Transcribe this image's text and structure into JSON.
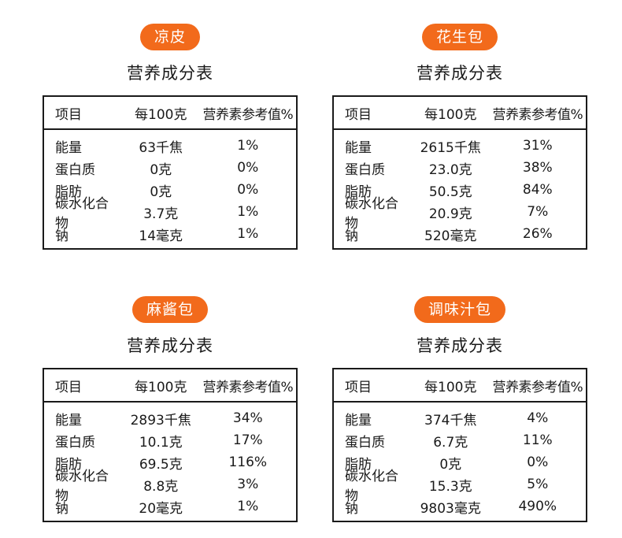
{
  "panels": [
    {
      "badge": "凉皮",
      "heading": "营养成分表",
      "header": {
        "item": "项目",
        "per100": "每100克",
        "nrv": "营养素参考值%"
      },
      "rows": [
        {
          "name": "能量",
          "value": "63千焦",
          "nrv": "1%"
        },
        {
          "name": "蛋白质",
          "value": "0克",
          "nrv": "0%"
        },
        {
          "name": "脂肪",
          "value": "0克",
          "nrv": "0%"
        },
        {
          "name": "碳水化合物",
          "value": "3.7克",
          "nrv": "1%"
        },
        {
          "name": "钠",
          "value": "14毫克",
          "nrv": "1%"
        }
      ]
    },
    {
      "badge": "花生包",
      "heading": "营养成分表",
      "header": {
        "item": "项目",
        "per100": "每100克",
        "nrv": "营养素参考值%"
      },
      "rows": [
        {
          "name": "能量",
          "value": "2615千焦",
          "nrv": "31%"
        },
        {
          "name": "蛋白质",
          "value": "23.0克",
          "nrv": "38%"
        },
        {
          "name": "脂肪",
          "value": "50.5克",
          "nrv": "84%"
        },
        {
          "name": "碳水化合物",
          "value": "20.9克",
          "nrv": "7%"
        },
        {
          "name": "钠",
          "value": "520毫克",
          "nrv": "26%"
        }
      ]
    },
    {
      "badge": "麻酱包",
      "heading": "营养成分表",
      "header": {
        "item": "项目",
        "per100": "每100克",
        "nrv": "营养素参考值%"
      },
      "rows": [
        {
          "name": "能量",
          "value": "2893千焦",
          "nrv": "34%"
        },
        {
          "name": "蛋白质",
          "value": "10.1克",
          "nrv": "17%"
        },
        {
          "name": "脂肪",
          "value": "69.5克",
          "nrv": "116%"
        },
        {
          "name": "碳水化合物",
          "value": "8.8克",
          "nrv": "3%"
        },
        {
          "name": "钠",
          "value": "20毫克",
          "nrv": "1%"
        }
      ]
    },
    {
      "badge": "调味汁包",
      "heading": "营养成分表",
      "header": {
        "item": "项目",
        "per100": "每100克",
        "nrv": "营养素参考值%"
      },
      "rows": [
        {
          "name": "能量",
          "value": "374千焦",
          "nrv": "4%"
        },
        {
          "name": "蛋白质",
          "value": "6.7克",
          "nrv": "11%"
        },
        {
          "name": "脂肪",
          "value": "0克",
          "nrv": "0%"
        },
        {
          "name": "碳水化合物",
          "value": "15.3克",
          "nrv": "5%"
        },
        {
          "name": "钠",
          "value": "9803毫克",
          "nrv": "490%"
        }
      ]
    }
  ],
  "colors": {
    "badge_bg": "#f26a1b",
    "badge_text": "#ffffff",
    "border": "#1a1a1a"
  }
}
